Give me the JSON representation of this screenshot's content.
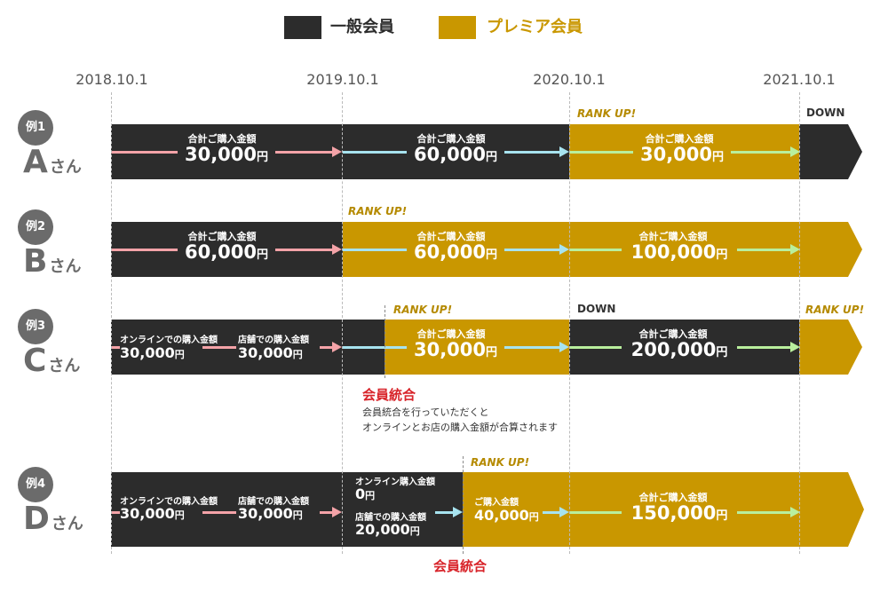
{
  "legend": {
    "regular": {
      "label": "一般会員",
      "color": "#2c2c2c"
    },
    "premium": {
      "label": "プレミア会員",
      "color": "#c99700"
    }
  },
  "dates": [
    "2018.10.1",
    "2019.10.1",
    "2020.10.1",
    "2021.10.1"
  ],
  "examples": [
    {
      "badge": "例1",
      "letter": "A",
      "suffix": "さん"
    },
    {
      "badge": "例2",
      "letter": "B",
      "suffix": "さん"
    },
    {
      "badge": "例3",
      "letter": "C",
      "suffix": "さん"
    },
    {
      "badge": "例4",
      "letter": "D",
      "suffix": "さん"
    }
  ],
  "common": {
    "total_label": "合計ご購入金額",
    "yen": "円",
    "rank_up": "RANK UP!",
    "down": "DOWN",
    "online_label": "オンラインでの購入金額",
    "store_label": "店舗での購入金額",
    "merge_title": "会員統合"
  },
  "row_a": {
    "v1": "30,000",
    "v2": "60,000",
    "v3": "30,000"
  },
  "row_b": {
    "v1": "60,000",
    "v2": "60,000",
    "v3": "100,000"
  },
  "row_c": {
    "online": "30,000",
    "store": "30,000",
    "v2": "30,000",
    "v3": "200,000",
    "note_line1": "会員統合を行っていただくと",
    "note_line2": "オンラインとお店の購入金額が合算されます"
  },
  "row_d": {
    "online": "30,000",
    "store": "30,000",
    "online_label2": "オンライン購入金額",
    "online_value2": "0",
    "store_label2": "店舗での購入金額",
    "store_value2": "20,000",
    "purchase_label": "ご購入金額",
    "purchase_value": "40,000",
    "v3": "150,000"
  }
}
